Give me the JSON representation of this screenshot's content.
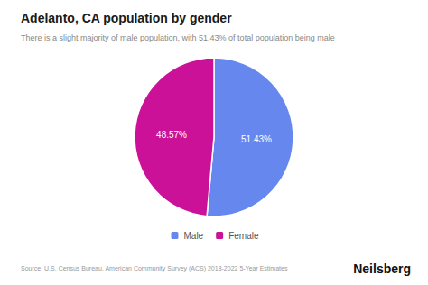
{
  "chart_data": {
    "type": "pie",
    "title": "Adelanto, CA population by gender",
    "subtitle": "There is a slight majority of male population, with 51.43% of total population being male",
    "categories": [
      "Male",
      "Female"
    ],
    "values": [
      51.43,
      48.57
    ],
    "value_labels": [
      "51.43%",
      "48.57%"
    ],
    "colors": [
      "#6688ee",
      "#cc1199"
    ],
    "data_labels": true,
    "legend": "bottom",
    "annotations": [
      "Source: U.S. Census Bureau, American Community Survey (ACS) 2018-2022 5-Year Estimates",
      "Neilsberg"
    ]
  }
}
